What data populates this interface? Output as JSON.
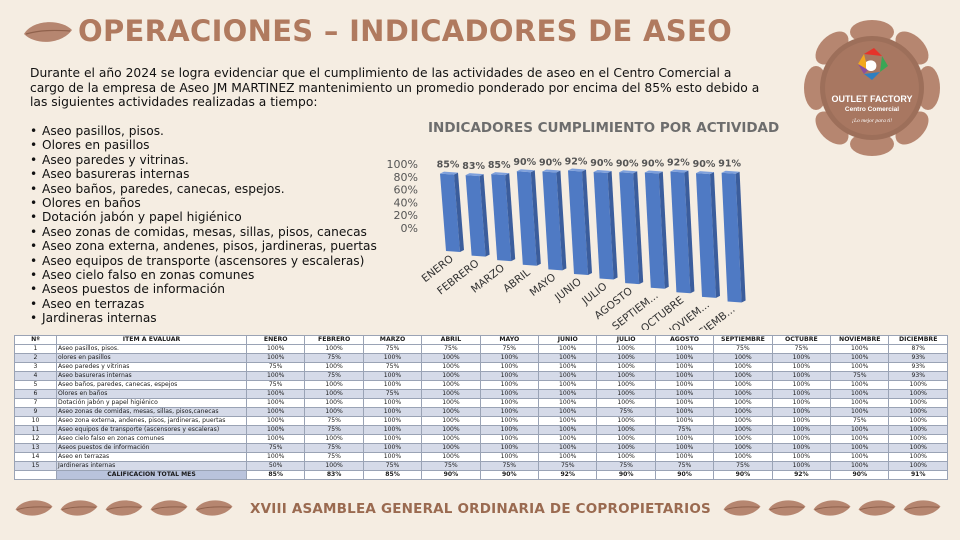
{
  "header": {
    "title": "OPERACIONES – INDICADORES DE ASEO"
  },
  "intro": {
    "text": "Durante el año 2024 se logra evidenciar que el cumplimiento de las actividades de aseo en el Centro Comercial a cargo de la empresa de  Aseo JM MARTINEZ mantenimiento un promedio ponderado por encima del 85% esto debido a las siguientes actividades realizadas a tiempo:"
  },
  "activities": [
    "Aseo pasillos, pisos.",
    "Olores en pasillos",
    "Aseo paredes y vitrinas.",
    "Aseo basureras internas",
    "Aseo baños, paredes, canecas, espejos.",
    "Olores en baños",
    "Dotación jabón y papel higiénico",
    "Aseo zonas de comidas, mesas, sillas, pisos, canecas",
    "Aseo zona externa, andenes, pisos, jardineras, puertas",
    "Aseo equipos de transporte (ascensores y escaleras)",
    "Aseo cielo falso en zonas comunes",
    "Aseos puestos de información",
    "Aseo en terrazas",
    "Jardineras internas"
  ],
  "logo": {
    "name": "OUTLET FACTORY",
    "subtitle": "Centro Comercial",
    "tagline": "¡Lo mejor para ti!"
  },
  "chart_data": {
    "type": "bar",
    "title": "INDICADORES CUMPLIMIENTO POR ACTIVIDAD",
    "categories": [
      "ENERO",
      "FEBRERO",
      "MARZO",
      "ABRIL",
      "MAYO",
      "JUNIO",
      "JULIO",
      "AGOSTO",
      "SEPTIEM...",
      "OCTUBRE",
      "NOVIEM...",
      "DICIEMB..."
    ],
    "values": [
      85,
      83,
      85,
      90,
      90,
      92,
      90,
      90,
      90,
      92,
      90,
      91
    ],
    "data_labels": [
      "85%",
      "83%",
      "85%",
      "90%",
      "90%",
      "92%",
      "90%",
      "90%",
      "90%",
      "92%",
      "90%",
      "91%"
    ],
    "y_ticks": [
      "0%",
      "20%",
      "40%",
      "60%",
      "80%",
      "100%"
    ],
    "ylim": [
      0,
      100
    ],
    "bar_color": "#4f7ac4",
    "grid": false,
    "legend": "none"
  },
  "table": {
    "headers": [
      "Nº",
      "ITEM A EVALUAR",
      "ENERO",
      "FEBRERO",
      "MARZO",
      "ABRIL",
      "MAYO",
      "JUNIO",
      "JULIO",
      "AGOSTO",
      "SEPTIEMBRE",
      "OCTUBRE",
      "NOVIEMBRE",
      "DICIEMBRE"
    ],
    "rows": [
      [
        "1",
        "Aseo pasillos, pisos.",
        "100%",
        "100%",
        "75%",
        "75%",
        "75%",
        "100%",
        "100%",
        "100%",
        "75%",
        "75%",
        "100%",
        "87%"
      ],
      [
        "2",
        "olores en pasillos",
        "100%",
        "75%",
        "100%",
        "100%",
        "100%",
        "100%",
        "100%",
        "100%",
        "100%",
        "100%",
        "100%",
        "93%"
      ],
      [
        "3",
        "Aseo paredes y vitrinas",
        "75%",
        "100%",
        "75%",
        "100%",
        "100%",
        "100%",
        "100%",
        "100%",
        "100%",
        "100%",
        "100%",
        "93%"
      ],
      [
        "4",
        "Aseo basureras internas",
        "100%",
        "75%",
        "100%",
        "100%",
        "100%",
        "100%",
        "100%",
        "100%",
        "100%",
        "100%",
        "75%",
        "93%"
      ],
      [
        "5",
        "Aseo baños, paredes, canecas, espejos",
        "75%",
        "100%",
        "100%",
        "100%",
        "100%",
        "100%",
        "100%",
        "100%",
        "100%",
        "100%",
        "100%",
        "100%"
      ],
      [
        "6",
        "Olores en baños",
        "100%",
        "100%",
        "75%",
        "100%",
        "100%",
        "100%",
        "100%",
        "100%",
        "100%",
        "100%",
        "100%",
        "100%"
      ],
      [
        "7",
        "Dotación jabón y papel higiénico",
        "100%",
        "100%",
        "100%",
        "100%",
        "100%",
        "100%",
        "100%",
        "100%",
        "100%",
        "100%",
        "100%",
        "100%"
      ],
      [
        "9",
        "Aseo zonas de comidas, mesas, sillas, pisos,canecas",
        "100%",
        "100%",
        "100%",
        "100%",
        "100%",
        "100%",
        "75%",
        "100%",
        "100%",
        "100%",
        "100%",
        "100%"
      ],
      [
        "10",
        "Aseo zona externa, andenes, pisos, jardineras, puertas",
        "100%",
        "75%",
        "100%",
        "100%",
        "100%",
        "100%",
        "100%",
        "100%",
        "100%",
        "100%",
        "75%",
        "100%"
      ],
      [
        "11",
        "Aseo equipos de transporte (ascensores y escaleras)",
        "100%",
        "75%",
        "100%",
        "100%",
        "100%",
        "100%",
        "100%",
        "75%",
        "100%",
        "100%",
        "100%",
        "100%"
      ],
      [
        "12",
        "Aseo cielo falso en zonas comunes",
        "100%",
        "100%",
        "100%",
        "100%",
        "100%",
        "100%",
        "100%",
        "100%",
        "100%",
        "100%",
        "100%",
        "100%"
      ],
      [
        "13",
        "Aseos puestos de información",
        "75%",
        "75%",
        "100%",
        "100%",
        "100%",
        "100%",
        "100%",
        "100%",
        "100%",
        "100%",
        "100%",
        "100%"
      ],
      [
        "14",
        "Aseo en terrazas",
        "100%",
        "75%",
        "100%",
        "100%",
        "100%",
        "100%",
        "100%",
        "100%",
        "100%",
        "100%",
        "100%",
        "100%"
      ],
      [
        "15",
        "Jardineras internas",
        "50%",
        "100%",
        "75%",
        "75%",
        "75%",
        "75%",
        "75%",
        "75%",
        "75%",
        "100%",
        "100%",
        "100%"
      ]
    ],
    "total_label": "CALIFICACIÓN TOTAL MES",
    "totals": [
      "85%",
      "83%",
      "85%",
      "90%",
      "90%",
      "92%",
      "90%",
      "90%",
      "90%",
      "92%",
      "90%",
      "91%"
    ]
  },
  "footer": {
    "text": "XVIII ASAMBLEA GENERAL ORDINARIA DE COPROPIETARIOS"
  },
  "colors": {
    "title": "#b07a5f",
    "leaf": "#b68670",
    "leaf_dark": "#8f614c",
    "stripe": "#d5dae8",
    "total_label_bg": "#b9c3dc"
  }
}
